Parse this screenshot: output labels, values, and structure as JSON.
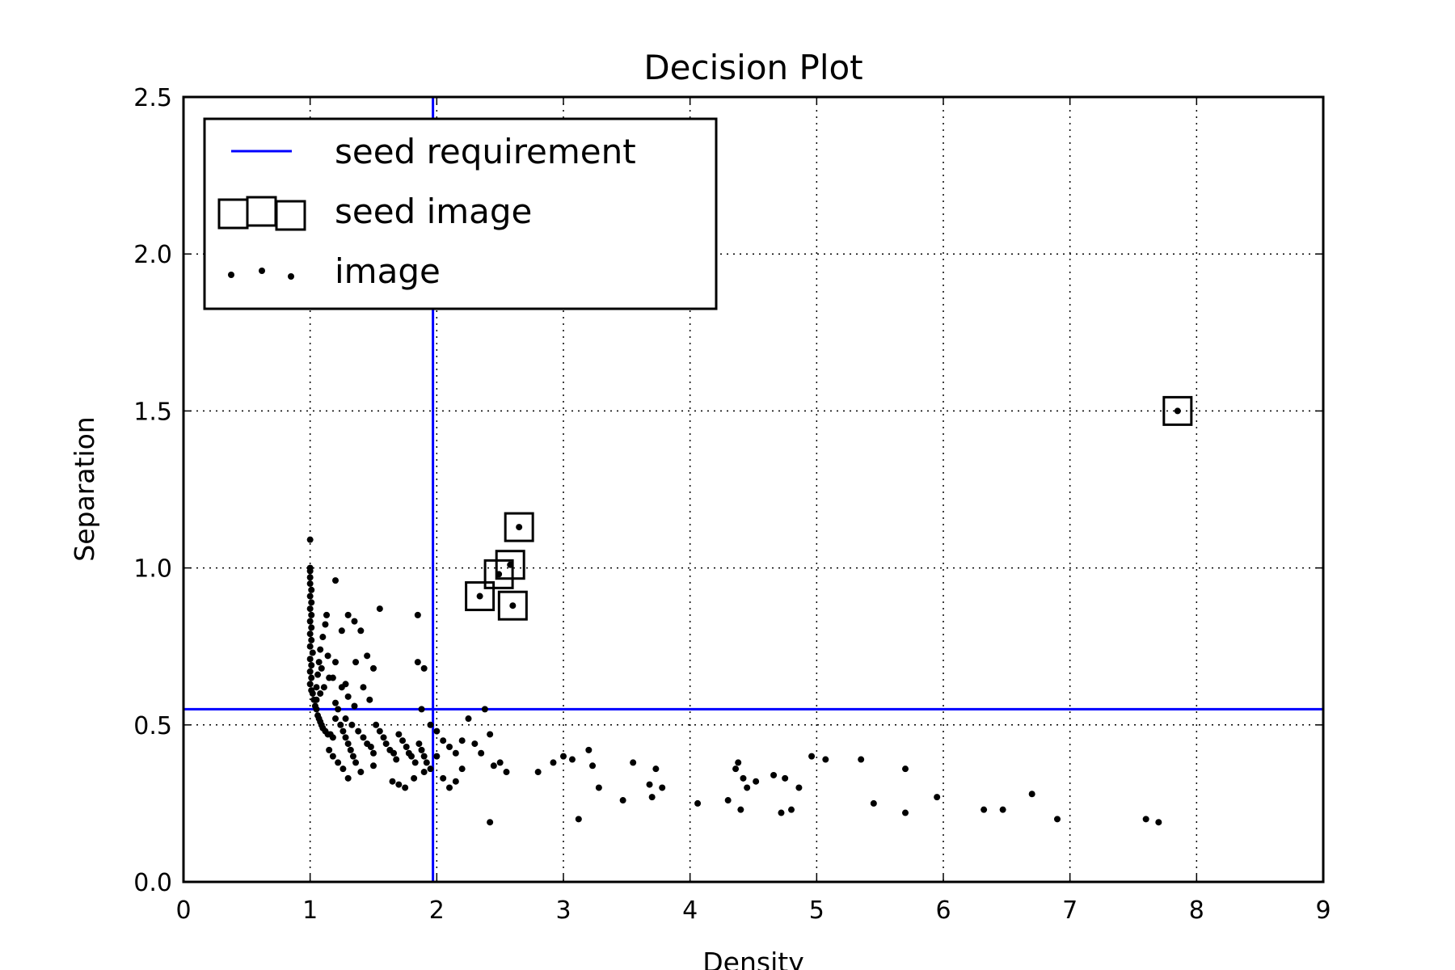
{
  "chart_data": {
    "type": "scatter",
    "title": "Decision Plot",
    "xlabel": "Density",
    "ylabel": "Separation",
    "xlim": [
      0,
      9
    ],
    "ylim": [
      0,
      2.5
    ],
    "xticks": [
      "0",
      "1",
      "2",
      "3",
      "4",
      "5",
      "6",
      "7",
      "8",
      "9"
    ],
    "yticks": [
      "0.0",
      "0.5",
      "1.0",
      "1.5",
      "2.0",
      "2.5"
    ],
    "grid": true,
    "legend_position": "upper-left",
    "thresholds": {
      "x": 1.97,
      "y": 0.55,
      "color": "#0000ff"
    },
    "legend": [
      "seed requirement",
      "seed image",
      "image"
    ],
    "series": [
      {
        "name": "seed image",
        "points": [
          [
            7.85,
            1.5
          ],
          [
            2.65,
            1.13
          ],
          [
            2.58,
            1.01
          ],
          [
            2.49,
            0.98
          ],
          [
            2.34,
            0.91
          ],
          [
            2.6,
            0.88
          ]
        ]
      },
      {
        "name": "image",
        "points": [
          [
            1.0,
            1.09
          ],
          [
            1.0,
            1.0
          ],
          [
            1.0,
            0.99
          ],
          [
            1.0,
            0.97
          ],
          [
            1.0,
            0.95
          ],
          [
            1.01,
            0.93
          ],
          [
            1.0,
            0.91
          ],
          [
            1.01,
            0.89
          ],
          [
            1.0,
            0.87
          ],
          [
            1.01,
            0.85
          ],
          [
            1.0,
            0.83
          ],
          [
            1.01,
            0.81
          ],
          [
            1.0,
            0.79
          ],
          [
            1.01,
            0.77
          ],
          [
            1.0,
            0.75
          ],
          [
            1.02,
            0.73
          ],
          [
            1.0,
            0.71
          ],
          [
            1.01,
            0.69
          ],
          [
            1.0,
            0.67
          ],
          [
            1.01,
            0.65
          ],
          [
            1.0,
            0.63
          ],
          [
            1.01,
            0.61
          ],
          [
            1.02,
            0.6
          ],
          [
            1.03,
            0.58
          ],
          [
            1.04,
            0.56
          ],
          [
            1.05,
            0.55
          ],
          [
            1.06,
            0.53
          ],
          [
            1.07,
            0.52
          ],
          [
            1.08,
            0.51
          ],
          [
            1.09,
            0.5
          ],
          [
            1.1,
            0.49
          ],
          [
            1.12,
            0.48
          ],
          [
            1.14,
            0.47
          ],
          [
            1.16,
            0.47
          ],
          [
            1.18,
            0.46
          ],
          [
            1.05,
            0.62
          ],
          [
            1.06,
            0.66
          ],
          [
            1.07,
            0.7
          ],
          [
            1.08,
            0.74
          ],
          [
            1.1,
            0.78
          ],
          [
            1.12,
            0.82
          ],
          [
            1.13,
            0.85
          ],
          [
            1.05,
            0.58
          ],
          [
            1.08,
            0.6
          ],
          [
            1.11,
            0.62
          ],
          [
            1.15,
            0.65
          ],
          [
            1.09,
            0.68
          ],
          [
            1.14,
            0.72
          ],
          [
            1.2,
            0.57
          ],
          [
            1.22,
            0.55
          ],
          [
            1.2,
            0.52
          ],
          [
            1.24,
            0.5
          ],
          [
            1.26,
            0.48
          ],
          [
            1.28,
            0.46
          ],
          [
            1.3,
            0.44
          ],
          [
            1.32,
            0.42
          ],
          [
            1.34,
            0.4
          ],
          [
            1.36,
            0.38
          ],
          [
            1.25,
            0.62
          ],
          [
            1.3,
            0.59
          ],
          [
            1.35,
            0.56
          ],
          [
            1.28,
            0.52
          ],
          [
            1.33,
            0.5
          ],
          [
            1.38,
            0.48
          ],
          [
            1.42,
            0.46
          ],
          [
            1.45,
            0.44
          ],
          [
            1.48,
            0.43
          ],
          [
            1.5,
            0.41
          ],
          [
            1.52,
            0.5
          ],
          [
            1.55,
            0.48
          ],
          [
            1.58,
            0.46
          ],
          [
            1.6,
            0.44
          ],
          [
            1.63,
            0.42
          ],
          [
            1.66,
            0.41
          ],
          [
            1.68,
            0.39
          ],
          [
            1.7,
            0.47
          ],
          [
            1.73,
            0.45
          ],
          [
            1.76,
            0.43
          ],
          [
            1.78,
            0.41
          ],
          [
            1.8,
            0.4
          ],
          [
            1.83,
            0.38
          ],
          [
            1.86,
            0.44
          ],
          [
            1.88,
            0.42
          ],
          [
            1.9,
            0.4
          ],
          [
            1.92,
            0.38
          ],
          [
            1.95,
            0.36
          ],
          [
            1.15,
            0.42
          ],
          [
            1.18,
            0.4
          ],
          [
            1.22,
            0.38
          ],
          [
            1.26,
            0.36
          ],
          [
            1.3,
            0.33
          ],
          [
            1.4,
            0.35
          ],
          [
            1.5,
            0.37
          ],
          [
            1.65,
            0.32
          ],
          [
            1.7,
            0.31
          ],
          [
            1.75,
            0.3
          ],
          [
            1.82,
            0.33
          ],
          [
            1.9,
            0.35
          ],
          [
            1.2,
            0.7
          ],
          [
            1.25,
            0.8
          ],
          [
            1.3,
            0.85
          ],
          [
            1.35,
            0.83
          ],
          [
            1.4,
            0.8
          ],
          [
            1.45,
            0.72
          ],
          [
            1.5,
            0.68
          ],
          [
            1.55,
            0.87
          ],
          [
            1.2,
            0.96
          ],
          [
            1.18,
            0.65
          ],
          [
            1.28,
            0.63
          ],
          [
            1.36,
            0.7
          ],
          [
            1.42,
            0.62
          ],
          [
            1.47,
            0.58
          ],
          [
            1.85,
            0.85
          ],
          [
            1.9,
            0.68
          ],
          [
            1.85,
            0.7
          ],
          [
            1.88,
            0.55
          ],
          [
            1.95,
            0.5
          ],
          [
            2.0,
            0.48
          ],
          [
            2.05,
            0.45
          ],
          [
            2.1,
            0.43
          ],
          [
            2.15,
            0.41
          ],
          [
            2.2,
            0.45
          ],
          [
            2.25,
            0.52
          ],
          [
            2.3,
            0.44
          ],
          [
            2.35,
            0.41
          ],
          [
            2.38,
            0.55
          ],
          [
            2.42,
            0.47
          ],
          [
            2.45,
            0.37
          ],
          [
            2.5,
            0.38
          ],
          [
            2.55,
            0.35
          ],
          [
            2.05,
            0.33
          ],
          [
            2.1,
            0.3
          ],
          [
            2.15,
            0.32
          ],
          [
            2.2,
            0.36
          ],
          [
            2.0,
            0.4
          ],
          [
            2.42,
            0.19
          ],
          [
            2.8,
            0.35
          ],
          [
            2.92,
            0.38
          ],
          [
            3.0,
            0.4
          ],
          [
            3.07,
            0.39
          ],
          [
            3.12,
            0.2
          ],
          [
            3.2,
            0.42
          ],
          [
            3.23,
            0.37
          ],
          [
            3.28,
            0.3
          ],
          [
            3.47,
            0.26
          ],
          [
            3.55,
            0.38
          ],
          [
            3.68,
            0.31
          ],
          [
            3.7,
            0.27
          ],
          [
            3.73,
            0.36
          ],
          [
            3.78,
            0.3
          ],
          [
            4.06,
            0.25
          ],
          [
            4.3,
            0.26
          ],
          [
            4.36,
            0.36
          ],
          [
            4.38,
            0.38
          ],
          [
            4.4,
            0.23
          ],
          [
            4.42,
            0.33
          ],
          [
            4.45,
            0.3
          ],
          [
            4.52,
            0.32
          ],
          [
            4.66,
            0.34
          ],
          [
            4.72,
            0.22
          ],
          [
            4.75,
            0.33
          ],
          [
            4.8,
            0.23
          ],
          [
            4.86,
            0.3
          ],
          [
            4.96,
            0.4
          ],
          [
            5.07,
            0.39
          ],
          [
            5.35,
            0.39
          ],
          [
            5.45,
            0.25
          ],
          [
            5.7,
            0.36
          ],
          [
            5.7,
            0.22
          ],
          [
            5.95,
            0.27
          ],
          [
            6.32,
            0.23
          ],
          [
            6.47,
            0.23
          ],
          [
            6.7,
            0.28
          ],
          [
            6.9,
            0.2
          ],
          [
            7.6,
            0.2
          ],
          [
            7.7,
            0.19
          ]
        ]
      }
    ]
  }
}
